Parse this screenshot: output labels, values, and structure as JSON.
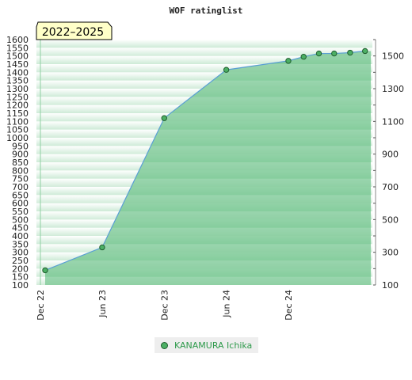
{
  "chart_data": {
    "type": "area",
    "title": "WOF ratinglist",
    "period_label": "2022–2025",
    "series": [
      {
        "name": "KANAMURA Ichika",
        "x": [
          "2022-12-15",
          "2023-06-01",
          "2023-12-01",
          "2024-06-01",
          "2024-12-01",
          "2025-01-15",
          "2025-03-01",
          "2025-04-15",
          "2025-06-01",
          "2025-07-15"
        ],
        "values": [
          190,
          330,
          1120,
          1415,
          1470,
          1495,
          1515,
          1515,
          1520,
          1530
        ]
      }
    ],
    "x_ticks": [
      "Dec 22",
      "Jun 23",
      "Dec 23",
      "Jun 24",
      "Dec 24"
    ],
    "left_axis": {
      "ylim": [
        100,
        1600
      ],
      "ticks": [
        100,
        150,
        200,
        250,
        300,
        350,
        400,
        450,
        500,
        550,
        600,
        650,
        700,
        750,
        800,
        850,
        900,
        950,
        1000,
        1050,
        1100,
        1150,
        1200,
        1250,
        1300,
        1350,
        1400,
        1450,
        1500,
        1550,
        1600
      ]
    },
    "right_axis": {
      "ylim": [
        100,
        1600
      ],
      "ticks": [
        100,
        300,
        500,
        700,
        900,
        1100,
        1300,
        1500
      ]
    },
    "colors": {
      "line": "#5a9fd4",
      "fill": "#6ec38a",
      "marker": "#4caf64",
      "marker_edge": "#1f5e2e",
      "label_bg": "#ffffc8",
      "legend_text": "#2e9a4b"
    },
    "legend": "bottom-center",
    "grid": true
  }
}
